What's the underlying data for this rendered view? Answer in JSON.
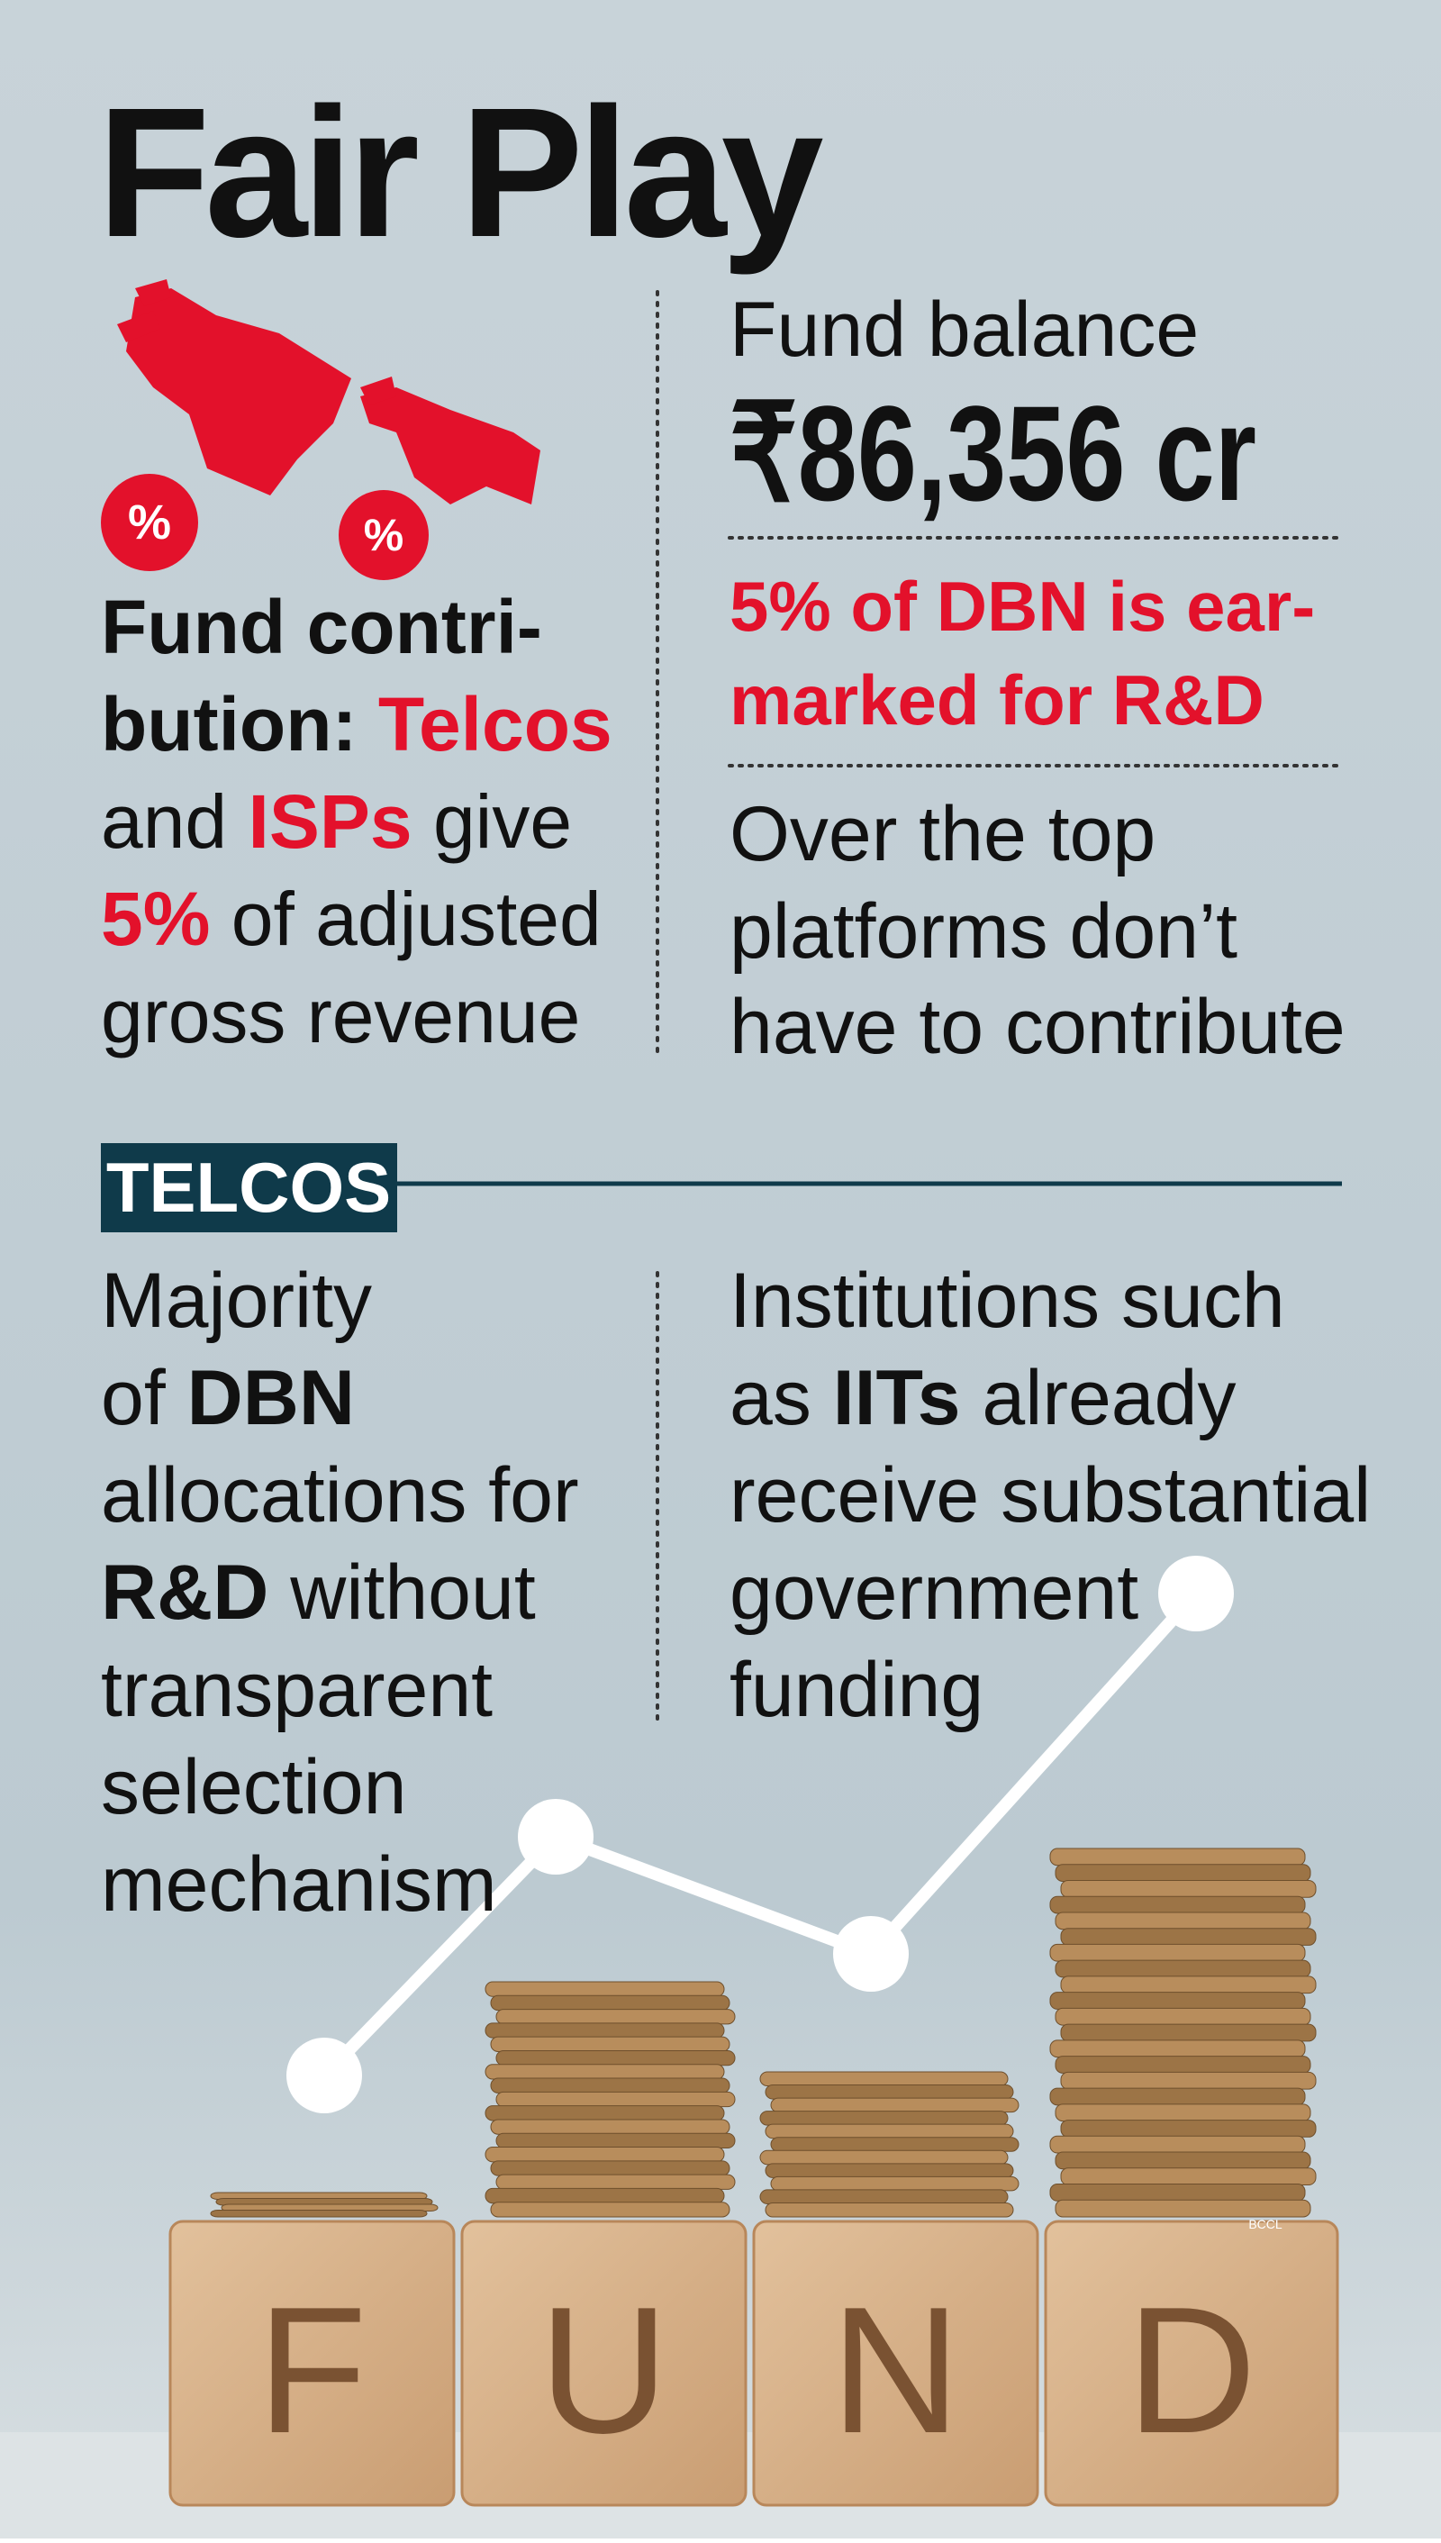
{
  "title": "Fair Play",
  "icon_badges": [
    "%",
    "%"
  ],
  "left_top": {
    "lines": [
      [
        {
          "text": "Fund contri-",
          "style": "bold"
        }
      ],
      [
        {
          "text": "bution: ",
          "style": "bold"
        },
        {
          "text": "Telcos",
          "style": "red"
        }
      ],
      [
        {
          "text": "and ",
          "style": "plain"
        },
        {
          "text": "ISPs",
          "style": "red"
        },
        {
          "text": " give",
          "style": "plain"
        }
      ],
      [
        {
          "text": "5%",
          "style": "red"
        },
        {
          "text": " of adjusted",
          "style": "plain"
        }
      ],
      [
        {
          "text": "gross revenue",
          "style": "plain"
        }
      ]
    ]
  },
  "right_top": {
    "label": "Fund balance",
    "amount": "₹86,356 cr",
    "note_lines": [
      "5% of DBN is ear-",
      "marked for R&D"
    ],
    "text_lines": [
      "Over the top",
      "platforms don’t",
      "have to contribute"
    ]
  },
  "section_label": "TELCOS",
  "left_bottom": {
    "lines": [
      [
        {
          "text": "Majority",
          "style": "plain"
        }
      ],
      [
        {
          "text": "of ",
          "style": "plain"
        },
        {
          "text": "DBN",
          "style": "bold"
        }
      ],
      [
        {
          "text": "allocations for",
          "style": "plain"
        }
      ],
      [
        {
          "text": "R&D",
          "style": "bold"
        },
        {
          "text": " without",
          "style": "plain"
        }
      ],
      [
        {
          "text": "transparent",
          "style": "plain"
        }
      ],
      [
        {
          "text": "selection",
          "style": "plain"
        }
      ],
      [
        {
          "text": "mechanism",
          "style": "plain"
        }
      ]
    ]
  },
  "right_bottom": {
    "lines": [
      [
        {
          "text": "Institutions such",
          "style": "plain"
        }
      ],
      [
        {
          "text": "as ",
          "style": "plain"
        },
        {
          "text": "IITs",
          "style": "bold"
        },
        {
          "text": " already",
          "style": "plain"
        }
      ],
      [
        {
          "text": "receive substantial",
          "style": "plain"
        }
      ],
      [
        {
          "text": "government",
          "style": "plain"
        }
      ],
      [
        {
          "text": "funding",
          "style": "plain"
        }
      ]
    ]
  },
  "blocks": [
    "F",
    "U",
    "N",
    "D"
  ],
  "credit": "BCCL"
}
